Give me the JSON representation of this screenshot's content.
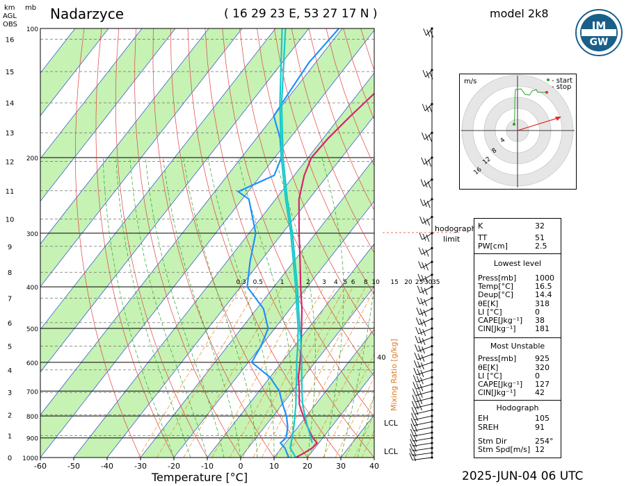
{
  "header": {
    "station": "Nadarzyce",
    "coords": "( 16 29 23  E, 53 27 17 N )",
    "model": "model 2k8",
    "date": "2025-JUN-04   06 UTC"
  },
  "axis_units": {
    "km": "km",
    "mb": "mb",
    "agl": "AGL",
    "obs": "OBS",
    "x_title": "Temperature [°C]",
    "mixing_ratio_title": "Mixing Ratio [g/kg]"
  },
  "logo": {
    "text_top": "IM",
    "text_bottom": "GW"
  },
  "hodograph": {
    "unit": "m/s",
    "legend_start": "- start",
    "legend_stop": "- stop",
    "ring_labels": [
      "4",
      "8",
      "12",
      "16"
    ],
    "start_color": "#2ca02c",
    "stop_color": "#e0302a",
    "limit_label_1": "hodograph",
    "limit_label_2": "limit"
  },
  "indices": {
    "top": [
      {
        "k": "K",
        "v": "32"
      },
      {
        "k": "TT",
        "v": "51"
      },
      {
        "k": "PW[cm]",
        "v": "2.5"
      }
    ],
    "lowest_title": "Lowest level",
    "lowest": [
      {
        "k": "Press[mb]",
        "v": "1000"
      },
      {
        "k": "Temp[°C]",
        "v": "16.5"
      },
      {
        "k": "Deup[°C]",
        "v": "14.4"
      },
      {
        "k": "θE[K]",
        "v": "318"
      },
      {
        "k": "LI [°C]",
        "v": "0"
      },
      {
        "k": "CAPE[Jkg⁻¹]",
        "v": "38"
      },
      {
        "k": "CIN[Jkg⁻¹]",
        "v": "181"
      }
    ],
    "mu_title": "Most Unstable",
    "mu": [
      {
        "k": "Press[mb]",
        "v": "925"
      },
      {
        "k": "θE[K]",
        "v": "320"
      },
      {
        "k": "LI [°C]",
        "v": "0"
      },
      {
        "k": "CAPE[Jkg⁻¹]",
        "v": "127"
      },
      {
        "k": "CIN[Jkg⁻¹]",
        "v": "42"
      }
    ],
    "hodo_title": "Hodograph",
    "hodo": [
      {
        "k": "EH",
        "v": "105"
      },
      {
        "k": "SREH",
        "v": "91"
      },
      {
        "k": "Stm Dir",
        "v": "254°"
      },
      {
        "k": "Stm Spd[m/s]",
        "v": "12"
      }
    ]
  },
  "lcl_labels": [
    "LCL",
    "LCL"
  ],
  "chart_data": {
    "type": "line",
    "xlabel": "Temperature [°C]",
    "ylabel": "mb",
    "xlim": [
      -60,
      40
    ],
    "ylim": [
      1000,
      100
    ],
    "x_ticks": [
      -60,
      -50,
      -40,
      -30,
      -20,
      -10,
      0,
      10,
      20,
      30,
      40
    ],
    "p_ticks": [
      100,
      200,
      300,
      400,
      500,
      600,
      700,
      800,
      900,
      1000
    ],
    "km_ticks": [
      0,
      1,
      2,
      3,
      4,
      5,
      6,
      7,
      8,
      9,
      10,
      11,
      12,
      13,
      14,
      15,
      16
    ],
    "mixing_ratio_labels": [
      "0.3",
      "0.5",
      "1",
      "2",
      "3",
      "4",
      "5",
      "6",
      "8",
      "10",
      "15",
      "20",
      "25",
      "30",
      "35",
      "40"
    ],
    "series": [
      {
        "role": "temperature",
        "color": "#d6246e",
        "points": [
          [
            1000,
            16.5
          ],
          [
            975,
            18
          ],
          [
            950,
            19.2
          ],
          [
            925,
            19.5
          ],
          [
            900,
            17
          ],
          [
            850,
            13
          ],
          [
            800,
            9
          ],
          [
            750,
            5
          ],
          [
            700,
            2
          ],
          [
            650,
            -1.5
          ],
          [
            600,
            -4.5
          ],
          [
            550,
            -8
          ],
          [
            500,
            -12
          ],
          [
            450,
            -16.5
          ],
          [
            400,
            -22
          ],
          [
            350,
            -28
          ],
          [
            300,
            -35
          ],
          [
            250,
            -43
          ],
          [
            220,
            -47
          ],
          [
            200,
            -49
          ],
          [
            180,
            -48.5
          ],
          [
            160,
            -47
          ],
          [
            140,
            -45
          ],
          [
            120,
            -45
          ],
          [
            100,
            -42
          ]
        ]
      },
      {
        "role": "dewpoint",
        "color": "#1e90ff",
        "points": [
          [
            1000,
            14.4
          ],
          [
            950,
            11
          ],
          [
            925,
            8.5
          ],
          [
            900,
            9
          ],
          [
            850,
            7
          ],
          [
            800,
            4
          ],
          [
            750,
            0
          ],
          [
            700,
            -4
          ],
          [
            650,
            -10
          ],
          [
            600,
            -19
          ],
          [
            550,
            -20
          ],
          [
            500,
            -22
          ],
          [
            450,
            -28
          ],
          [
            400,
            -38
          ],
          [
            350,
            -43
          ],
          [
            300,
            -48
          ],
          [
            250,
            -58
          ],
          [
            240,
            -63
          ],
          [
            220,
            -56
          ],
          [
            200,
            -58
          ],
          [
            180,
            -63
          ],
          [
            160,
            -70
          ],
          [
            140,
            -71
          ],
          [
            120,
            -72
          ],
          [
            100,
            -71
          ]
        ]
      },
      {
        "role": "parcel",
        "color": "#18c8c8",
        "points": [
          [
            1000,
            16.5
          ],
          [
            950,
            12.6
          ],
          [
            900,
            10.8
          ],
          [
            850,
            8.8
          ],
          [
            800,
            6.5
          ],
          [
            750,
            4
          ],
          [
            700,
            1
          ],
          [
            650,
            -2
          ],
          [
            600,
            -5.5
          ],
          [
            550,
            -9
          ],
          [
            500,
            -13
          ],
          [
            450,
            -18
          ],
          [
            400,
            -23.5
          ],
          [
            350,
            -30
          ],
          [
            300,
            -37.5
          ],
          [
            250,
            -47
          ],
          [
            200,
            -58
          ],
          [
            150,
            -71
          ],
          [
            100,
            -88
          ]
        ]
      },
      {
        "role": "parcel-mu",
        "color": "#18c8c8",
        "points": [
          [
            925,
            18
          ],
          [
            900,
            16.5
          ],
          [
            850,
            13
          ],
          [
            800,
            9.5
          ],
          [
            750,
            6
          ],
          [
            700,
            2.8
          ],
          [
            650,
            -0.5
          ],
          [
            600,
            -4
          ],
          [
            550,
            -8
          ],
          [
            500,
            -12.5
          ],
          [
            450,
            -17.5
          ],
          [
            400,
            -23
          ],
          [
            350,
            -29.5
          ],
          [
            300,
            -37
          ],
          [
            250,
            -46.5
          ],
          [
            200,
            -57.5
          ],
          [
            150,
            -70.5
          ],
          [
            100,
            -87
          ]
        ]
      }
    ],
    "wind_barbs_pressure": [
      1000,
      975,
      950,
      925,
      900,
      875,
      850,
      825,
      800,
      775,
      750,
      725,
      700,
      675,
      650,
      625,
      600,
      575,
      550,
      525,
      500,
      475,
      450,
      425,
      400,
      375,
      350,
      325,
      300,
      275,
      250,
      225,
      200,
      175,
      150,
      125,
      100
    ]
  }
}
